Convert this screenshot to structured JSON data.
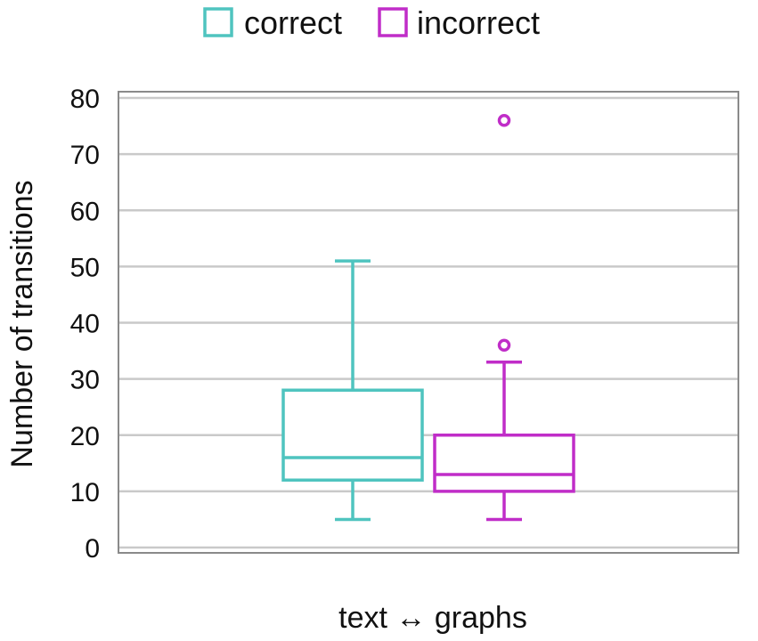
{
  "chart_data": {
    "type": "boxplot",
    "category": "text ↔ graphs",
    "xlabel": "text ↔ graphs",
    "ylabel": "Number of transitions",
    "ylim": [
      0,
      80
    ],
    "yticks": [
      0,
      10,
      20,
      30,
      40,
      50,
      60,
      70,
      80
    ],
    "grid": true,
    "legend_position": "top",
    "series": [
      {
        "name": "correct",
        "color": "#4fc4bf",
        "whisker_low": 5,
        "q1": 12,
        "median": 16,
        "q3": 28,
        "whisker_high": 51,
        "outliers": []
      },
      {
        "name": "incorrect",
        "color": "#c02dc8",
        "whisker_low": 5,
        "q1": 10,
        "median": 13,
        "q3": 20,
        "whisker_high": 33,
        "outliers": [
          36,
          76
        ]
      }
    ]
  }
}
